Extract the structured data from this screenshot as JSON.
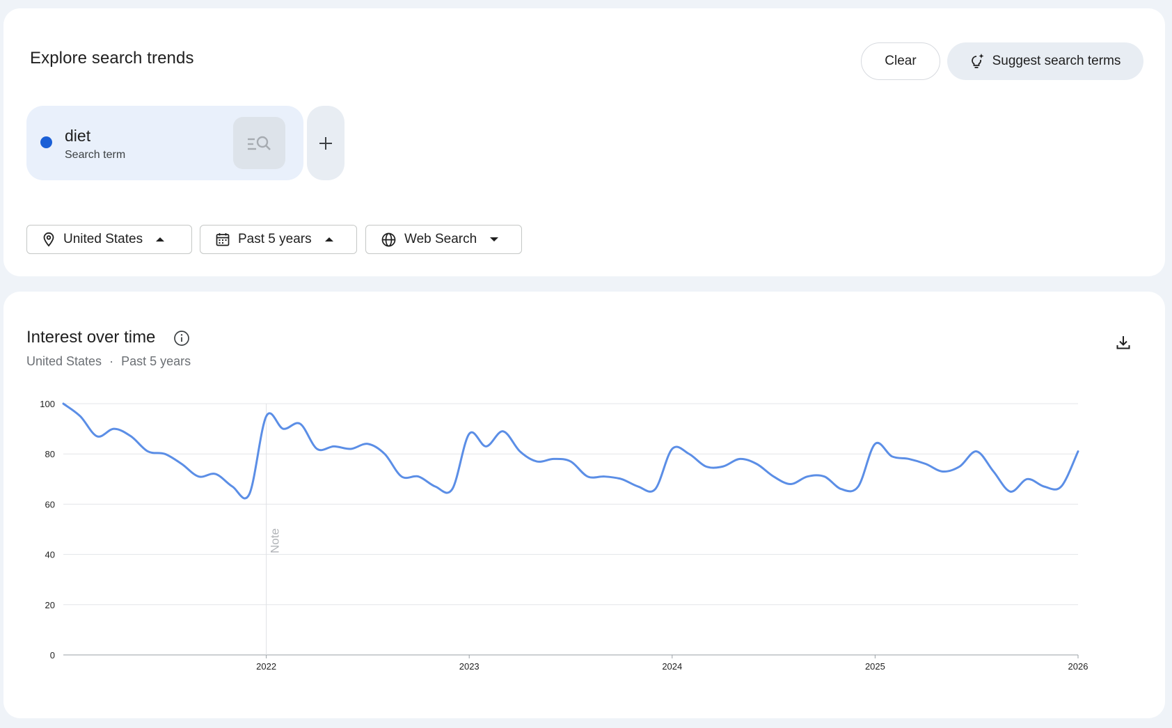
{
  "header": {
    "title": "Explore search trends",
    "clear_label": "Clear",
    "suggest_label": "Suggest search terms"
  },
  "term": {
    "name": "diet",
    "type": "Search term",
    "color": "#1a5fd6"
  },
  "filters": {
    "geo": "United States",
    "time": "Past 5 years",
    "property": "Web Search"
  },
  "chart_section": {
    "title": "Interest over time",
    "subtitle_geo": "United States",
    "subtitle_sep": "·",
    "subtitle_time": "Past 5 years",
    "note_label": "Note"
  },
  "chart_data": {
    "type": "line",
    "ylim": [
      0,
      100
    ],
    "yticks": [
      0,
      20,
      40,
      60,
      80,
      100
    ],
    "x_range": [
      "2021-01",
      "2026-01"
    ],
    "xticks": [
      "2022",
      "2023",
      "2024",
      "2025",
      "2026"
    ],
    "note_at": "2022-01",
    "line_color": "#5b8ee6",
    "grid": true,
    "series": [
      {
        "points": [
          [
            "2021-01",
            100
          ],
          [
            "2021-02",
            95
          ],
          [
            "2021-03",
            87
          ],
          [
            "2021-04",
            90
          ],
          [
            "2021-05",
            87
          ],
          [
            "2021-06",
            81
          ],
          [
            "2021-07",
            80
          ],
          [
            "2021-08",
            76
          ],
          [
            "2021-09",
            71
          ],
          [
            "2021-10",
            72
          ],
          [
            "2021-11",
            67
          ],
          [
            "2021-12",
            64
          ],
          [
            "2022-01",
            95
          ],
          [
            "2022-02",
            90
          ],
          [
            "2022-03",
            92
          ],
          [
            "2022-04",
            82
          ],
          [
            "2022-05",
            83
          ],
          [
            "2022-06",
            82
          ],
          [
            "2022-07",
            84
          ],
          [
            "2022-08",
            80
          ],
          [
            "2022-09",
            71
          ],
          [
            "2022-10",
            71
          ],
          [
            "2022-11",
            67
          ],
          [
            "2022-12",
            66
          ],
          [
            "2023-01",
            88
          ],
          [
            "2023-02",
            83
          ],
          [
            "2023-03",
            89
          ],
          [
            "2023-04",
            81
          ],
          [
            "2023-05",
            77
          ],
          [
            "2023-06",
            78
          ],
          [
            "2023-07",
            77
          ],
          [
            "2023-08",
            71
          ],
          [
            "2023-09",
            71
          ],
          [
            "2023-10",
            70
          ],
          [
            "2023-11",
            67
          ],
          [
            "2023-12",
            66
          ],
          [
            "2024-01",
            82
          ],
          [
            "2024-02",
            80
          ],
          [
            "2024-03",
            75
          ],
          [
            "2024-04",
            75
          ],
          [
            "2024-05",
            78
          ],
          [
            "2024-06",
            76
          ],
          [
            "2024-07",
            71
          ],
          [
            "2024-08",
            68
          ],
          [
            "2024-09",
            71
          ],
          [
            "2024-10",
            71
          ],
          [
            "2024-11",
            66
          ],
          [
            "2024-12",
            67
          ],
          [
            "2025-01",
            84
          ],
          [
            "2025-02",
            79
          ],
          [
            "2025-03",
            78
          ],
          [
            "2025-04",
            76
          ],
          [
            "2025-05",
            73
          ],
          [
            "2025-06",
            75
          ],
          [
            "2025-07",
            81
          ],
          [
            "2025-08",
            73
          ],
          [
            "2025-09",
            65
          ],
          [
            "2025-10",
            70
          ],
          [
            "2025-11",
            67
          ],
          [
            "2025-12",
            67
          ],
          [
            "2026-01",
            81
          ]
        ]
      }
    ]
  }
}
